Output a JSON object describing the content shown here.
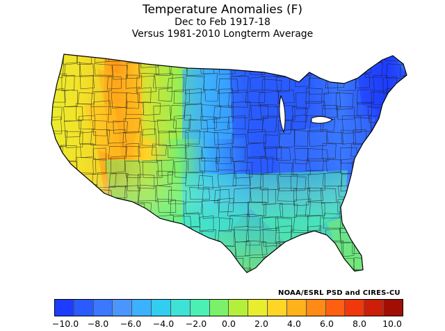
{
  "titles": {
    "line1": "Temperature Anomalies (F)",
    "line2": "Dec to Feb 1917-18",
    "line3": "Versus 1981-2010 Longterm Average"
  },
  "credit": "NOAA/ESRL PSD and CIRES-CU",
  "legend": {
    "colors": [
      "#1e3cff",
      "#2a5bff",
      "#3a78ff",
      "#4b95ff",
      "#3cb1ff",
      "#32cdf0",
      "#3ee2d6",
      "#4cf0b4",
      "#7cf06a",
      "#b4ef3c",
      "#e8ee2e",
      "#ffd526",
      "#ffb21c",
      "#ff8a16",
      "#ff5f10",
      "#f0380c",
      "#cc1e08",
      "#a00e04"
    ],
    "tick_labels": [
      "−10.0",
      "−8.0",
      "−6.0",
      "−4.0",
      "−2.0",
      "0.0",
      "2.0",
      "4.0",
      "6.0",
      "8.0",
      "10.0"
    ]
  },
  "regions": [
    {
      "name": "region-pacific-northwest",
      "anomaly": 1.5,
      "color": "#e8ee2e"
    },
    {
      "name": "region-california",
      "anomaly": 1.8,
      "color": "#e8ee2e"
    },
    {
      "name": "region-great-basin",
      "anomaly": 2.5,
      "color": "#ffd526"
    },
    {
      "name": "region-idaho-utah",
      "anomaly": 4.0,
      "color": "#ffb21c"
    },
    {
      "name": "region-montana-wyoming",
      "anomaly": 1.0,
      "color": "#b4ef3c"
    },
    {
      "name": "region-southwest",
      "anomaly": 0.0,
      "color": "#7cf06a"
    },
    {
      "name": "region-southern-plains",
      "anomaly": -2.5,
      "color": "#3ee2d6"
    },
    {
      "name": "region-northern-plains",
      "anomaly": -6.0,
      "color": "#3cb1ff"
    },
    {
      "name": "region-upper-midwest",
      "anomaly": -9.0,
      "color": "#2a5bff"
    },
    {
      "name": "region-ohio-valley",
      "anomaly": -7.5,
      "color": "#3a78ff"
    },
    {
      "name": "region-southeast",
      "anomaly": -2.0,
      "color": "#4cf0b4"
    },
    {
      "name": "region-florida",
      "anomaly": 0.5,
      "color": "#7cf06a"
    },
    {
      "name": "region-mid-atlantic",
      "anomaly": -7.0,
      "color": "#3a78ff"
    },
    {
      "name": "region-new-england",
      "anomaly": -9.5,
      "color": "#1e3cff"
    }
  ]
}
